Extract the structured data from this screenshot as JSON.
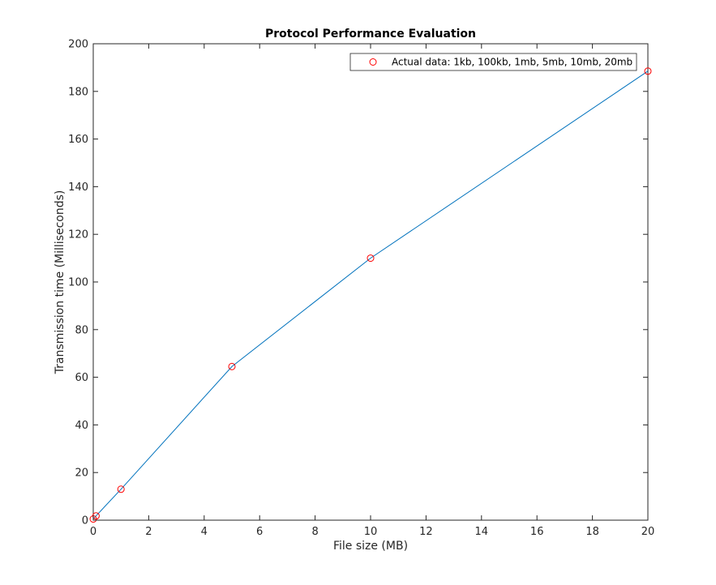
{
  "chart_data": {
    "type": "line",
    "title": "Protocol Performance Evaluation",
    "xlabel": "File size (MB)",
    "ylabel": "Transmission time (Milliseconds)",
    "xlim": [
      0,
      20
    ],
    "ylim": [
      0,
      200
    ],
    "x_ticks": [
      0,
      2,
      4,
      6,
      8,
      10,
      12,
      14,
      16,
      18,
      20
    ],
    "y_ticks": [
      0,
      20,
      40,
      60,
      80,
      100,
      120,
      140,
      160,
      180,
      200
    ],
    "grid": false,
    "legend_position": "top-right",
    "series": [
      {
        "name": "Actual data: 1kb, 100kb, 1mb, 5mb, 10mb, 20mb",
        "x": [
          0.001,
          0.1,
          1,
          5,
          10,
          20
        ],
        "y": [
          0.5,
          1.8,
          13,
          64.5,
          110,
          188.5
        ],
        "marker": "circle",
        "marker_color": "#ff0000",
        "line_color": "#0072bd"
      }
    ]
  }
}
